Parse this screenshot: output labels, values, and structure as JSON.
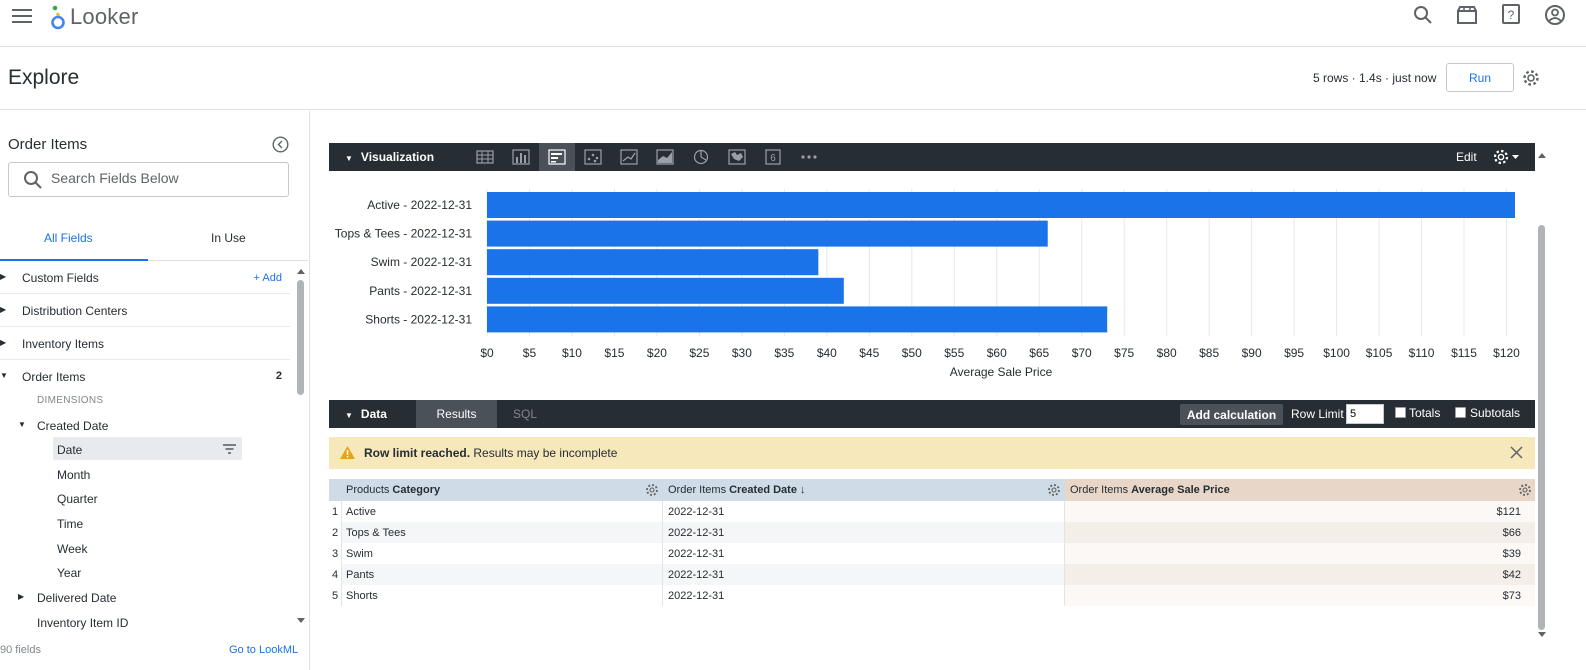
{
  "app": {
    "name": "Looker"
  },
  "page": {
    "title": "Explore",
    "run_status": "5 rows · 1.4s · just now",
    "run_label": "Run"
  },
  "left": {
    "title": "Order Items",
    "search_placeholder": "Search Fields Below",
    "tabs": [
      {
        "label": "All Fields"
      },
      {
        "label": "In Use"
      }
    ],
    "groups": [
      {
        "label": "Custom Fields",
        "action": "+ Add"
      },
      {
        "label": "Distribution Centers"
      },
      {
        "label": "Inventory Items"
      },
      {
        "label": "Order Items",
        "count": "2"
      }
    ],
    "dimensions_label": "DIMENSIONS",
    "created_date": "Created Date",
    "timeframes": [
      "Date",
      "Month",
      "Quarter",
      "Time",
      "Week",
      "Year"
    ],
    "delivered_date": "Delivered Date",
    "inventory_item_id": "Inventory Item ID",
    "field_count": "90 fields",
    "go_lookml": "Go to LookML"
  },
  "viz": {
    "label": "Visualization",
    "edit_label": "Edit"
  },
  "chart_data": {
    "type": "bar",
    "orientation": "horizontal",
    "categories": [
      "Active - 2022-12-31",
      "Tops & Tees - 2022-12-31",
      "Swim - 2022-12-31",
      "Pants - 2022-12-31",
      "Shorts - 2022-12-31"
    ],
    "values": [
      121,
      66,
      39,
      42,
      73
    ],
    "xlabel": "Average Sale Price",
    "xlim": [
      0,
      121
    ],
    "xticks": [
      "$0",
      "$5",
      "$10",
      "$15",
      "$20",
      "$25",
      "$30",
      "$35",
      "$40",
      "$45",
      "$50",
      "$55",
      "$60",
      "$65",
      "$70",
      "$75",
      "$80",
      "$85",
      "$90",
      "$95",
      "$100",
      "$105",
      "$110",
      "$115",
      "$120"
    ],
    "bar_color": "#1a73e8",
    "grid": true
  },
  "data": {
    "label": "Data",
    "tab_results": "Results",
    "tab_sql": "SQL",
    "add_calc": "Add calculation",
    "row_limit_label": "Row Limit",
    "row_limit_value": "5",
    "totals": "Totals",
    "subtotals": "Subtotals",
    "warning_bold": "Row limit reached.",
    "warning_rest": " Results may be incomplete",
    "columns": [
      {
        "view": "Products",
        "field": "Category"
      },
      {
        "view": "Order Items",
        "field": "Created Date ↓"
      },
      {
        "view": "Order Items",
        "field": "Average Sale Price"
      }
    ],
    "rows": [
      {
        "n": "1",
        "category": "Active",
        "date": "2022-12-31",
        "price": "$121"
      },
      {
        "n": "2",
        "category": "Tops & Tees",
        "date": "2022-12-31",
        "price": "$66"
      },
      {
        "n": "3",
        "category": "Swim",
        "date": "2022-12-31",
        "price": "$39"
      },
      {
        "n": "4",
        "category": "Pants",
        "date": "2022-12-31",
        "price": "$42"
      },
      {
        "n": "5",
        "category": "Shorts",
        "date": "2022-12-31",
        "price": "$73"
      }
    ]
  }
}
